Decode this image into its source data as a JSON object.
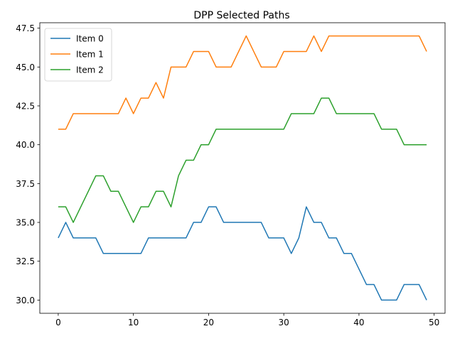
{
  "chart_data": {
    "type": "line",
    "title": "DPP Selected Paths",
    "xlabel": "",
    "ylabel": "",
    "xlim": [
      -2.45,
      51.45
    ],
    "ylim": [
      29.15,
      47.85
    ],
    "xticks": [
      0,
      10,
      20,
      30,
      40,
      50
    ],
    "xtick_labels": [
      "0",
      "10",
      "20",
      "30",
      "40",
      "50"
    ],
    "yticks": [
      30.0,
      32.5,
      35.0,
      37.5,
      40.0,
      42.5,
      45.0,
      47.5
    ],
    "ytick_labels": [
      "30.0",
      "32.5",
      "35.0",
      "37.5",
      "40.0",
      "42.5",
      "45.0",
      "47.5"
    ],
    "grid": false,
    "legend_position": "top-left",
    "x": [
      0,
      1,
      2,
      3,
      4,
      5,
      6,
      7,
      8,
      9,
      10,
      11,
      12,
      13,
      14,
      15,
      16,
      17,
      18,
      19,
      20,
      21,
      22,
      23,
      24,
      25,
      26,
      27,
      28,
      29,
      30,
      31,
      32,
      33,
      34,
      35,
      36,
      37,
      38,
      39,
      40,
      41,
      42,
      43,
      44,
      45,
      46,
      47,
      48,
      49
    ],
    "series": [
      {
        "name": "Item 0",
        "color": "#1f77b4",
        "values": [
          34,
          35,
          34,
          34,
          34,
          34,
          33,
          33,
          33,
          33,
          33,
          33,
          34,
          34,
          34,
          34,
          34,
          34,
          35,
          35,
          36,
          36,
          35,
          35,
          35,
          35,
          35,
          35,
          34,
          34,
          34,
          33,
          34,
          36,
          35,
          35,
          34,
          34,
          33,
          33,
          32,
          31,
          31,
          30,
          30,
          30,
          31,
          31,
          31,
          30
        ]
      },
      {
        "name": "Item 1",
        "color": "#ff7f0e",
        "values": [
          41,
          41,
          42,
          42,
          42,
          42,
          42,
          42,
          42,
          43,
          42,
          43,
          43,
          44,
          43,
          45,
          45,
          45,
          46,
          46,
          46,
          45,
          45,
          45,
          46,
          47,
          46,
          45,
          45,
          45,
          46,
          46,
          46,
          46,
          47,
          46,
          47,
          47,
          47,
          47,
          47,
          47,
          47,
          47,
          47,
          47,
          47,
          47,
          47,
          46
        ]
      },
      {
        "name": "Item 2",
        "color": "#2ca02c",
        "values": [
          36,
          36,
          35,
          36,
          37,
          38,
          38,
          37,
          37,
          36,
          35,
          36,
          36,
          37,
          37,
          36,
          38,
          39,
          39,
          40,
          40,
          41,
          41,
          41,
          41,
          41,
          41,
          41,
          41,
          41,
          41,
          42,
          42,
          42,
          42,
          43,
          43,
          42,
          42,
          42,
          42,
          42,
          42,
          41,
          41,
          41,
          40,
          40,
          40,
          40
        ]
      }
    ]
  }
}
